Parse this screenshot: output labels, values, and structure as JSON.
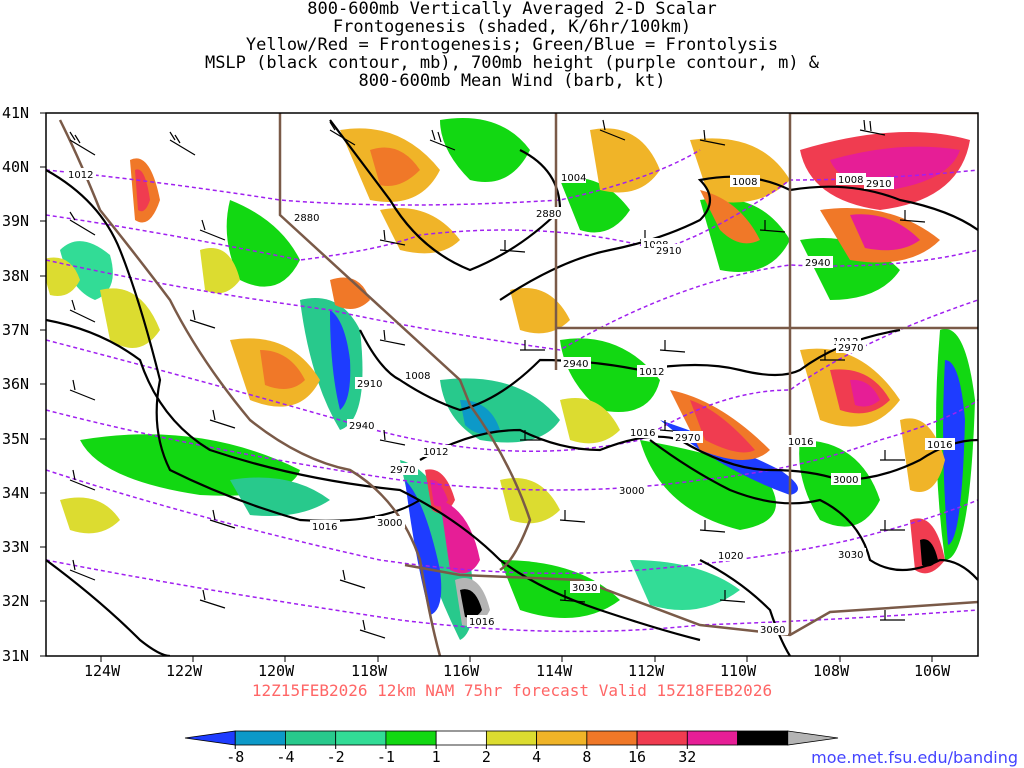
{
  "title_lines": [
    "800-600mb Vertically Averaged 2-D Scalar",
    "Frontogenesis (shaded, K/6hr/100km)",
    "Yellow/Red = Frontogenesis;  Green/Blue = Frontolysis",
    "MSLP (black contour, mb), 700mb height (purple contour, m) &",
    "800-600mb Mean Wind (barb, kt)"
  ],
  "forecast_line": "12Z15FEB2026 12km NAM 75hr forecast Valid 15Z18FEB2026",
  "source_url": "moe.met.fsu.edu/banding",
  "axes": {
    "lat_labels": [
      "41N",
      "40N",
      "39N",
      "38N",
      "37N",
      "36N",
      "35N",
      "34N",
      "33N",
      "32N",
      "31N"
    ],
    "lon_labels": [
      "124W",
      "122W",
      "120W",
      "118W",
      "116W",
      "114W",
      "112W",
      "110W",
      "108W",
      "106W"
    ]
  },
  "colorbar": {
    "labels": [
      "-8",
      "-4",
      "-2",
      "-1",
      "1",
      "2",
      "4",
      "8",
      "16",
      "32"
    ],
    "colors": [
      "#1e3cff",
      "#0c99c8",
      "#28c98c",
      "#32dc96",
      "#12d812",
      "#ffffff",
      "#dcdc30",
      "#f0b428",
      "#f07828",
      "#f03c50",
      "#e61e96",
      "#000000",
      "#b4b4b4"
    ]
  },
  "contour_labels": {
    "mslp": [
      "1012",
      "1004",
      "1008",
      "1008",
      "1008",
      "1012",
      "1008",
      "1012",
      "1012",
      "1016",
      "1016",
      "1016",
      "1016",
      "1020",
      "1016",
      "1012"
    ],
    "height": [
      "2880",
      "2880",
      "2910",
      "2910",
      "2940",
      "2940",
      "2910",
      "2940",
      "2970",
      "2970",
      "2970",
      "3000",
      "3000",
      "3000",
      "3030",
      "3030",
      "3060"
    ]
  },
  "legend_colors": {
    "mslp_contour": "#000000",
    "height_contour": "#a020f0",
    "state_border": "#7a5a48",
    "barb": "#000000"
  }
}
